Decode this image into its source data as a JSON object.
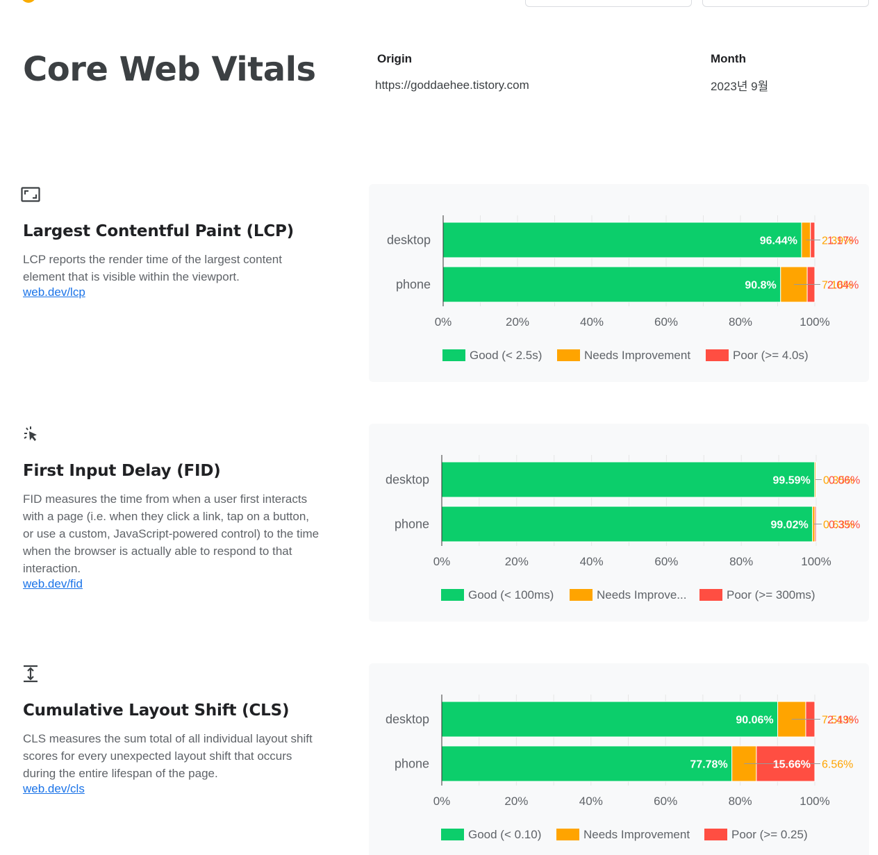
{
  "header": {
    "title": "Core Web Vitals",
    "origin_label": "Origin",
    "origin_value": "https://goddaehee.tistory.com",
    "month_label": "Month",
    "month_value": "2023년 9월"
  },
  "colors": {
    "good": "#0cce6b",
    "needs_improvement": "#ffa400",
    "poor": "#ff4e42",
    "card_bg": "#f8f9fa"
  },
  "metrics": [
    {
      "id": "lcp",
      "icon": "lcp-frame-icon",
      "title": "Largest Contentful Paint (LCP)",
      "description": "LCP reports the render time of the largest content element that is visible within the viewport.",
      "link": "web.dev/lcp",
      "chart_data": {
        "type": "bar",
        "orientation": "horizontal",
        "stacked": true,
        "categories": [
          "desktop",
          "phone"
        ],
        "series": [
          {
            "name": "Good (< 2.5s)",
            "values": [
              96.44,
              90.8
            ],
            "labels": [
              "96.44%",
              "90.8%"
            ]
          },
          {
            "name": "Needs Improvement",
            "values": [
              2.39,
              7.16
            ],
            "labels": [
              "2.39%",
              "7.16%"
            ]
          },
          {
            "name": "Poor (>= 4.0s)",
            "values": [
              1.17,
              2.04
            ],
            "labels": [
              "1.17%",
              "2.04%"
            ]
          }
        ],
        "x_ticks": [
          "0%",
          "20%",
          "40%",
          "60%",
          "80%",
          "100%"
        ],
        "xlim": [
          0,
          100
        ],
        "grid": true,
        "legend": "bottom"
      }
    },
    {
      "id": "fid",
      "icon": "fid-pointer-icon",
      "title": "First Input Delay (FID)",
      "description": "FID measures the time from when a user first interacts with a page (i.e. when they click a link, tap on a button, or use a custom, JavaScript-powered control) to the time when the browser is actually able to respond to that interaction.",
      "link": "web.dev/fid",
      "chart_data": {
        "type": "bar",
        "orientation": "horizontal",
        "stacked": true,
        "categories": [
          "desktop",
          "phone"
        ],
        "series": [
          {
            "name": "Good (< 100ms)",
            "values": [
              99.59,
              99.02
            ],
            "labels": [
              "99.59%",
              "99.02%"
            ]
          },
          {
            "name": "Needs Improve...",
            "values": [
              0.35,
              0.63
            ],
            "labels": [
              "0.35%",
              "0.63%"
            ]
          },
          {
            "name": "Poor (>= 300ms)",
            "values": [
              0.06,
              0.35
            ],
            "labels": [
              "0.06%",
              "0.35%"
            ]
          }
        ],
        "x_ticks": [
          "0%",
          "20%",
          "40%",
          "60%",
          "80%",
          "100%"
        ],
        "xlim": [
          0,
          100
        ],
        "grid": true,
        "legend": "bottom"
      }
    },
    {
      "id": "cls",
      "icon": "cls-shift-icon",
      "title": "Cumulative Layout Shift (CLS)",
      "description": "CLS measures the sum total of all individual layout shift scores for every unexpected layout shift that occurs during the entire lifespan of the page.",
      "link": "web.dev/cls",
      "chart_data": {
        "type": "bar",
        "orientation": "horizontal",
        "stacked": true,
        "categories": [
          "desktop",
          "phone"
        ],
        "series": [
          {
            "name": "Good (< 0.10)",
            "values": [
              90.06,
              77.78
            ],
            "labels": [
              "90.06%",
              "77.78%"
            ]
          },
          {
            "name": "Needs Improvement",
            "values": [
              7.51,
              6.56
            ],
            "labels": [
              "7.51%",
              "6.56%"
            ]
          },
          {
            "name": "Poor (>= 0.25)",
            "values": [
              2.43,
              15.66
            ],
            "labels": [
              "2.43%",
              "15.66%"
            ]
          }
        ],
        "x_ticks": [
          "0%",
          "20%",
          "40%",
          "60%",
          "80%",
          "100%"
        ],
        "xlim": [
          0,
          100
        ],
        "grid": true,
        "legend": "bottom"
      }
    }
  ]
}
